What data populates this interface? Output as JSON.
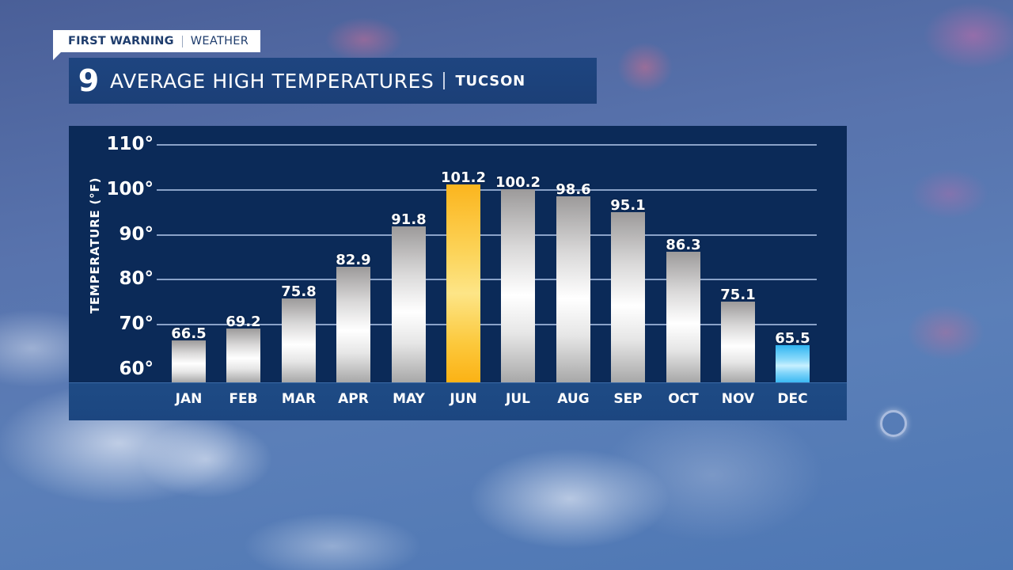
{
  "branding": {
    "tag_strong": "FIRST WARNING",
    "tag_light": "WEATHER",
    "logo": "9"
  },
  "header": {
    "title": "AVERAGE HIGH TEMPERATURES",
    "location": "TUCSON"
  },
  "colors": {
    "panel": "#0b2a58",
    "title_bar": "#1e4580",
    "highlight_max": "#fbb51e",
    "highlight_min": "#4cc3f5",
    "default_bar": "#d9d8d8"
  },
  "chart_data": {
    "type": "bar",
    "title": "AVERAGE HIGH TEMPERATURES | TUCSON",
    "xlabel": "",
    "ylabel": "TEMPERATURE (°F)",
    "categories": [
      "JAN",
      "FEB",
      "MAR",
      "APR",
      "MAY",
      "JUN",
      "JUL",
      "AUG",
      "SEP",
      "OCT",
      "NOV",
      "DEC"
    ],
    "values": [
      66.5,
      69.2,
      75.8,
      82.9,
      91.8,
      101.2,
      100.2,
      98.6,
      95.1,
      86.3,
      75.1,
      65.5
    ],
    "value_labels": [
      "66.5",
      "69.2",
      "75.8",
      "82.9",
      "91.8",
      "101.2",
      "100.2",
      "98.6",
      "95.1",
      "86.3",
      "75.1",
      "65.5"
    ],
    "yticks": [
      60,
      70,
      80,
      90,
      100,
      110
    ],
    "ytick_labels": [
      "60°",
      "70°",
      "80°",
      "90°",
      "100°",
      "110°"
    ],
    "ylim": [
      57,
      112
    ],
    "grid": true,
    "legend": null,
    "highlights": {
      "max": "JUN",
      "min": "DEC"
    }
  }
}
